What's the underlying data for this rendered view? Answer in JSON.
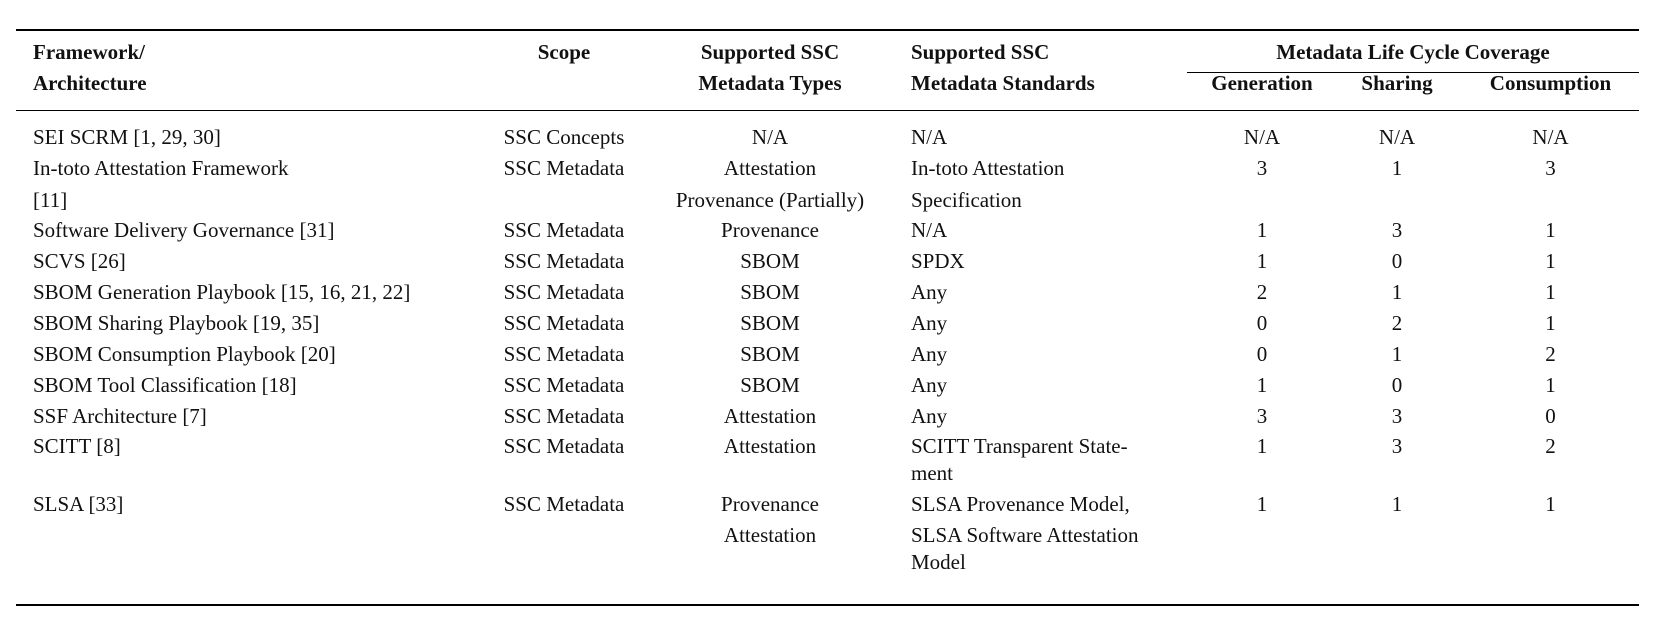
{
  "table": {
    "headers": {
      "framework": [
        "Framework/",
        "Architecture"
      ],
      "scope": "Scope",
      "metadata_types": [
        "Supported SSC",
        "Metadata Types"
      ],
      "metadata_standards": [
        "Supported SSC",
        "Metadata Standards"
      ],
      "life_cycle_group": "Metadata Life Cycle Coverage",
      "generation": "Generation",
      "sharing": "Sharing",
      "consumption": "Consumption"
    },
    "rows": [
      {
        "framework": [
          "SEI SCRM [1, 29, 30]"
        ],
        "scope": "SSC Concepts",
        "types": [
          "N/A"
        ],
        "standards": [
          "N/A"
        ],
        "generation": "N/A",
        "sharing": "N/A",
        "consumption": "N/A"
      },
      {
        "framework": [
          "In-toto Attestation Framework",
          "[11]"
        ],
        "scope": "SSC Metadata",
        "types": [
          "Attestation",
          "Provenance (Partially)"
        ],
        "standards": [
          "In-toto Attestation",
          "Specification"
        ],
        "generation": "3",
        "sharing": "1",
        "consumption": "3"
      },
      {
        "framework": [
          "Software Delivery Governance [31]"
        ],
        "scope": "SSC Metadata",
        "types": [
          "Provenance"
        ],
        "standards": [
          "N/A"
        ],
        "generation": "1",
        "sharing": "3",
        "consumption": "1"
      },
      {
        "framework": [
          "SCVS [26]"
        ],
        "scope": "SSC Metadata",
        "types": [
          "SBOM"
        ],
        "standards": [
          "SPDX"
        ],
        "generation": "1",
        "sharing": "0",
        "consumption": "1"
      },
      {
        "framework": [
          "SBOM Generation Playbook [15, 16, 21, 22]"
        ],
        "scope": "SSC Metadata",
        "types": [
          "SBOM"
        ],
        "standards": [
          "Any"
        ],
        "generation": "2",
        "sharing": "1",
        "consumption": "1"
      },
      {
        "framework": [
          "SBOM Sharing Playbook [19, 35]"
        ],
        "scope": "SSC Metadata",
        "types": [
          "SBOM"
        ],
        "standards": [
          "Any"
        ],
        "generation": "0",
        "sharing": "2",
        "consumption": "1"
      },
      {
        "framework": [
          "SBOM Consumption Playbook [20]"
        ],
        "scope": "SSC Metadata",
        "types": [
          "SBOM"
        ],
        "standards": [
          "Any"
        ],
        "generation": "0",
        "sharing": "1",
        "consumption": "2"
      },
      {
        "framework": [
          "SBOM Tool Classification [18]"
        ],
        "scope": "SSC Metadata",
        "types": [
          "SBOM"
        ],
        "standards": [
          "Any"
        ],
        "generation": "1",
        "sharing": "0",
        "consumption": "1"
      },
      {
        "framework": [
          "SSF Architecture [7]"
        ],
        "scope": "SSC Metadata",
        "types": [
          "Attestation"
        ],
        "standards": [
          "Any"
        ],
        "generation": "3",
        "sharing": "3",
        "consumption": "0"
      },
      {
        "framework": [
          "SCITT [8]"
        ],
        "scope": "SSC Metadata",
        "types": [
          "Attestation"
        ],
        "standards": [
          "SCITT Transparent State-",
          "ment"
        ],
        "generation": "1",
        "sharing": "3",
        "consumption": "2"
      },
      {
        "framework": [
          "SLSA [33]"
        ],
        "scope": "SSC Metadata",
        "types": [
          "Provenance",
          "Attestation"
        ],
        "standards": [
          "SLSA Provenance Model,",
          "SLSA Software Attestation",
          "Model"
        ],
        "generation": "1",
        "sharing": "1",
        "consumption": "1"
      }
    ]
  }
}
